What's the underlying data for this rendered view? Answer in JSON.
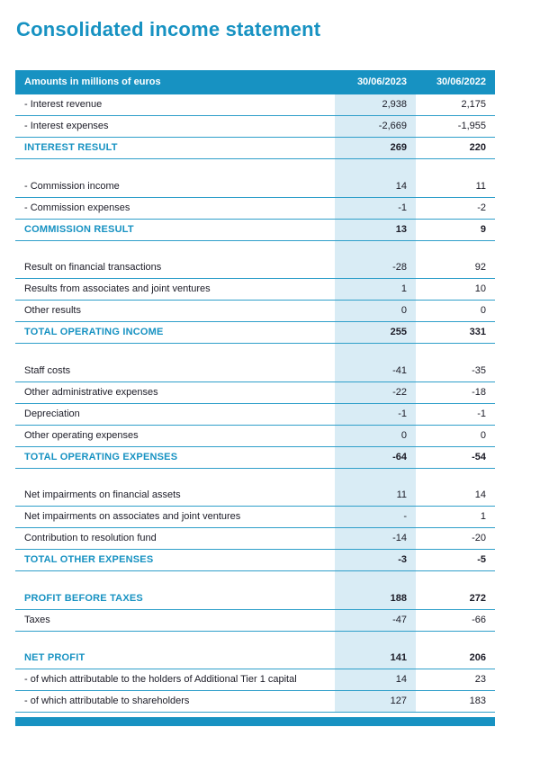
{
  "page": {
    "title": "Consolidated income statement"
  },
  "table": {
    "header": {
      "label": "Amounts in millions of euros",
      "col1": "30/06/2023",
      "col2": "30/06/2022"
    },
    "colors": {
      "accent": "#1792c2",
      "col1_bg": "#d9ecf5",
      "line": "#2f9fca"
    },
    "rows": [
      {
        "type": "normal",
        "label": "- Interest revenue",
        "v1": "2,938",
        "v2": "2,175"
      },
      {
        "type": "normal",
        "label": "- Interest expenses",
        "v1": "-2,669",
        "v2": "-1,955"
      },
      {
        "type": "subtotal",
        "label": "INTEREST RESULT",
        "v1": "269",
        "v2": "220"
      },
      {
        "type": "spacer"
      },
      {
        "type": "normal",
        "label": "- Commission income",
        "v1": "14",
        "v2": "11"
      },
      {
        "type": "normal",
        "label": "- Commission expenses",
        "v1": "-1",
        "v2": "-2"
      },
      {
        "type": "subtotal",
        "label": "COMMISSION RESULT",
        "v1": "13",
        "v2": "9"
      },
      {
        "type": "spacer"
      },
      {
        "type": "normal",
        "label": "Result on financial transactions",
        "v1": "-28",
        "v2": "92"
      },
      {
        "type": "normal",
        "label": "Results from associates and joint ventures",
        "v1": "1",
        "v2": "10"
      },
      {
        "type": "normal",
        "label": "Other results",
        "v1": "0",
        "v2": "0"
      },
      {
        "type": "subtotal",
        "label": "TOTAL OPERATING INCOME",
        "v1": "255",
        "v2": "331"
      },
      {
        "type": "spacer"
      },
      {
        "type": "normal",
        "label": "Staff costs",
        "v1": "-41",
        "v2": "-35"
      },
      {
        "type": "normal",
        "label": "Other administrative expenses",
        "v1": "-22",
        "v2": "-18"
      },
      {
        "type": "normal",
        "label": "Depreciation",
        "v1": "-1",
        "v2": "-1"
      },
      {
        "type": "normal",
        "label": "Other operating expenses",
        "v1": "0",
        "v2": "0"
      },
      {
        "type": "subtotal",
        "label": "TOTAL OPERATING EXPENSES",
        "v1": "-64",
        "v2": "-54"
      },
      {
        "type": "spacer"
      },
      {
        "type": "normal",
        "label": "Net impairments on financial assets",
        "v1": "11",
        "v2": "14"
      },
      {
        "type": "normal",
        "label": "Net impairments on associates and joint ventures",
        "v1": "-",
        "v2": "1"
      },
      {
        "type": "normal",
        "label": "Contribution to resolution fund",
        "v1": "-14",
        "v2": "-20"
      },
      {
        "type": "subtotal",
        "label": "TOTAL OTHER EXPENSES",
        "v1": "-3",
        "v2": "-5"
      },
      {
        "type": "spacer"
      },
      {
        "type": "subtotal",
        "label": "PROFIT BEFORE TAXES",
        "v1": "188",
        "v2": "272"
      },
      {
        "type": "normal",
        "label": "Taxes",
        "v1": "-47",
        "v2": "-66"
      },
      {
        "type": "spacer"
      },
      {
        "type": "subtotal",
        "label": "NET PROFIT",
        "v1": "141",
        "v2": "206"
      },
      {
        "type": "normal",
        "label": "- of which attributable to the holders of Additional Tier 1 capital",
        "v1": "14",
        "v2": "23"
      },
      {
        "type": "normal",
        "label": "- of which attributable to shareholders",
        "v1": "127",
        "v2": "183"
      }
    ]
  }
}
